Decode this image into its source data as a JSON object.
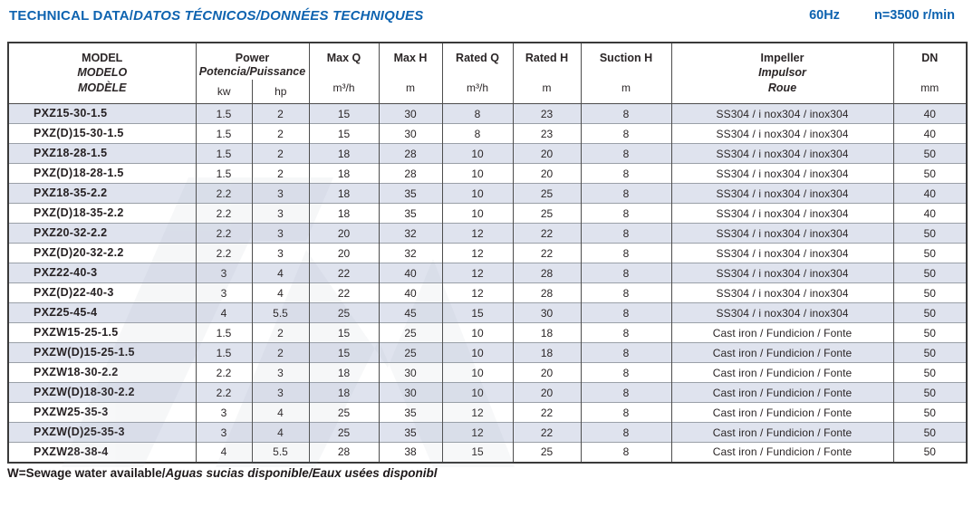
{
  "header": {
    "title_regular": "TECHNICAL DATA/",
    "title_italic": "DATOS TÉCNICOS/DONNÉES TECHNIQUES",
    "frequency": "60Hz",
    "speed": "n=3500 r/min"
  },
  "table": {
    "columns": {
      "model": {
        "line1": "MODEL",
        "line2": "MODELO",
        "line3": "MODÈLE"
      },
      "power": {
        "line1": "Power",
        "line2": "Potencia/Puissance",
        "unit1": "kw",
        "unit2": "hp"
      },
      "max_q": {
        "label": "Max Q",
        "unit": "m³/h"
      },
      "max_h": {
        "label": "Max H",
        "unit": "m"
      },
      "rated_q": {
        "label": "Rated Q",
        "unit": "m³/h"
      },
      "rated_h": {
        "label": "Rated H",
        "unit": "m"
      },
      "suction_h": {
        "label": "Suction H",
        "unit": "m"
      },
      "impeller": {
        "line1": "Impeller",
        "line2": "Impulsor",
        "line3": "Roue"
      },
      "dn": {
        "label": "DN",
        "unit": "mm"
      }
    },
    "rows": [
      {
        "model": "PXZ15-30-1.5",
        "kw": "1.5",
        "hp": "2",
        "max_q": "15",
        "max_h": "30",
        "rated_q": "8",
        "rated_h": "23",
        "suction_h": "8",
        "impeller": "SS304 / i nox304 / inox304",
        "dn": "40"
      },
      {
        "model": "PXZ(D)15-30-1.5",
        "kw": "1.5",
        "hp": "2",
        "max_q": "15",
        "max_h": "30",
        "rated_q": "8",
        "rated_h": "23",
        "suction_h": "8",
        "impeller": "SS304 / i nox304 / inox304",
        "dn": "40"
      },
      {
        "model": "PXZ18-28-1.5",
        "kw": "1.5",
        "hp": "2",
        "max_q": "18",
        "max_h": "28",
        "rated_q": "10",
        "rated_h": "20",
        "suction_h": "8",
        "impeller": "SS304 / i nox304 / inox304",
        "dn": "50"
      },
      {
        "model": "PXZ(D)18-28-1.5",
        "kw": "1.5",
        "hp": "2",
        "max_q": "18",
        "max_h": "28",
        "rated_q": "10",
        "rated_h": "20",
        "suction_h": "8",
        "impeller": "SS304 / i nox304 / inox304",
        "dn": "50"
      },
      {
        "model": "PXZ18-35-2.2",
        "kw": "2.2",
        "hp": "3",
        "max_q": "18",
        "max_h": "35",
        "rated_q": "10",
        "rated_h": "25",
        "suction_h": "8",
        "impeller": "SS304 / i nox304 / inox304",
        "dn": "40"
      },
      {
        "model": "PXZ(D)18-35-2.2",
        "kw": "2.2",
        "hp": "3",
        "max_q": "18",
        "max_h": "35",
        "rated_q": "10",
        "rated_h": "25",
        "suction_h": "8",
        "impeller": "SS304 / i nox304 / inox304",
        "dn": "40"
      },
      {
        "model": "PXZ20-32-2.2",
        "kw": "2.2",
        "hp": "3",
        "max_q": "20",
        "max_h": "32",
        "rated_q": "12",
        "rated_h": "22",
        "suction_h": "8",
        "impeller": "SS304 / i nox304 / inox304",
        "dn": "50"
      },
      {
        "model": "PXZ(D)20-32-2.2",
        "kw": "2.2",
        "hp": "3",
        "max_q": "20",
        "max_h": "32",
        "rated_q": "12",
        "rated_h": "22",
        "suction_h": "8",
        "impeller": "SS304 / i nox304 / inox304",
        "dn": "50"
      },
      {
        "model": "PXZ22-40-3",
        "kw": "3",
        "hp": "4",
        "max_q": "22",
        "max_h": "40",
        "rated_q": "12",
        "rated_h": "28",
        "suction_h": "8",
        "impeller": "SS304 / i nox304 / inox304",
        "dn": "50"
      },
      {
        "model": "PXZ(D)22-40-3",
        "kw": "3",
        "hp": "4",
        "max_q": "22",
        "max_h": "40",
        "rated_q": "12",
        "rated_h": "28",
        "suction_h": "8",
        "impeller": "SS304 / i nox304 / inox304",
        "dn": "50"
      },
      {
        "model": "PXZ25-45-4",
        "kw": "4",
        "hp": "5.5",
        "max_q": "25",
        "max_h": "45",
        "rated_q": "15",
        "rated_h": "30",
        "suction_h": "8",
        "impeller": "SS304 / i nox304 / inox304",
        "dn": "50"
      },
      {
        "model": "PXZW15-25-1.5",
        "kw": "1.5",
        "hp": "2",
        "max_q": "15",
        "max_h": "25",
        "rated_q": "10",
        "rated_h": "18",
        "suction_h": "8",
        "impeller": "Cast iron / Fundicion / Fonte",
        "dn": "50"
      },
      {
        "model": "PXZW(D)15-25-1.5",
        "kw": "1.5",
        "hp": "2",
        "max_q": "15",
        "max_h": "25",
        "rated_q": "10",
        "rated_h": "18",
        "suction_h": "8",
        "impeller": "Cast iron / Fundicion / Fonte",
        "dn": "50"
      },
      {
        "model": "PXZW18-30-2.2",
        "kw": "2.2",
        "hp": "3",
        "max_q": "18",
        "max_h": "30",
        "rated_q": "10",
        "rated_h": "20",
        "suction_h": "8",
        "impeller": "Cast iron / Fundicion / Fonte",
        "dn": "50"
      },
      {
        "model": "PXZW(D)18-30-2.2",
        "kw": "2.2",
        "hp": "3",
        "max_q": "18",
        "max_h": "30",
        "rated_q": "10",
        "rated_h": "20",
        "suction_h": "8",
        "impeller": "Cast iron / Fundicion / Fonte",
        "dn": "50"
      },
      {
        "model": "PXZW25-35-3",
        "kw": "3",
        "hp": "4",
        "max_q": "25",
        "max_h": "35",
        "rated_q": "12",
        "rated_h": "22",
        "suction_h": "8",
        "impeller": "Cast iron / Fundicion / Fonte",
        "dn": "50"
      },
      {
        "model": "PXZW(D)25-35-3",
        "kw": "3",
        "hp": "4",
        "max_q": "25",
        "max_h": "35",
        "rated_q": "12",
        "rated_h": "22",
        "suction_h": "8",
        "impeller": "Cast iron / Fundicion / Fonte",
        "dn": "50"
      },
      {
        "model": "PXZW28-38-4",
        "kw": "4",
        "hp": "5.5",
        "max_q": "28",
        "max_h": "38",
        "rated_q": "15",
        "rated_h": "25",
        "suction_h": "8",
        "impeller": "Cast iron / Fundicion / Fonte",
        "dn": "50"
      }
    ]
  },
  "footer": {
    "note_regular": "W=Sewage water available/",
    "note_italic": "Aguas sucias disponible/Eaux usées disponibl"
  },
  "colors": {
    "title_blue": "#0e63b0",
    "stripe": "#dfe3ee",
    "border_dark": "#3a3a3a",
    "row_line": "#9aa0a8",
    "text_dark": "#2b2627"
  }
}
